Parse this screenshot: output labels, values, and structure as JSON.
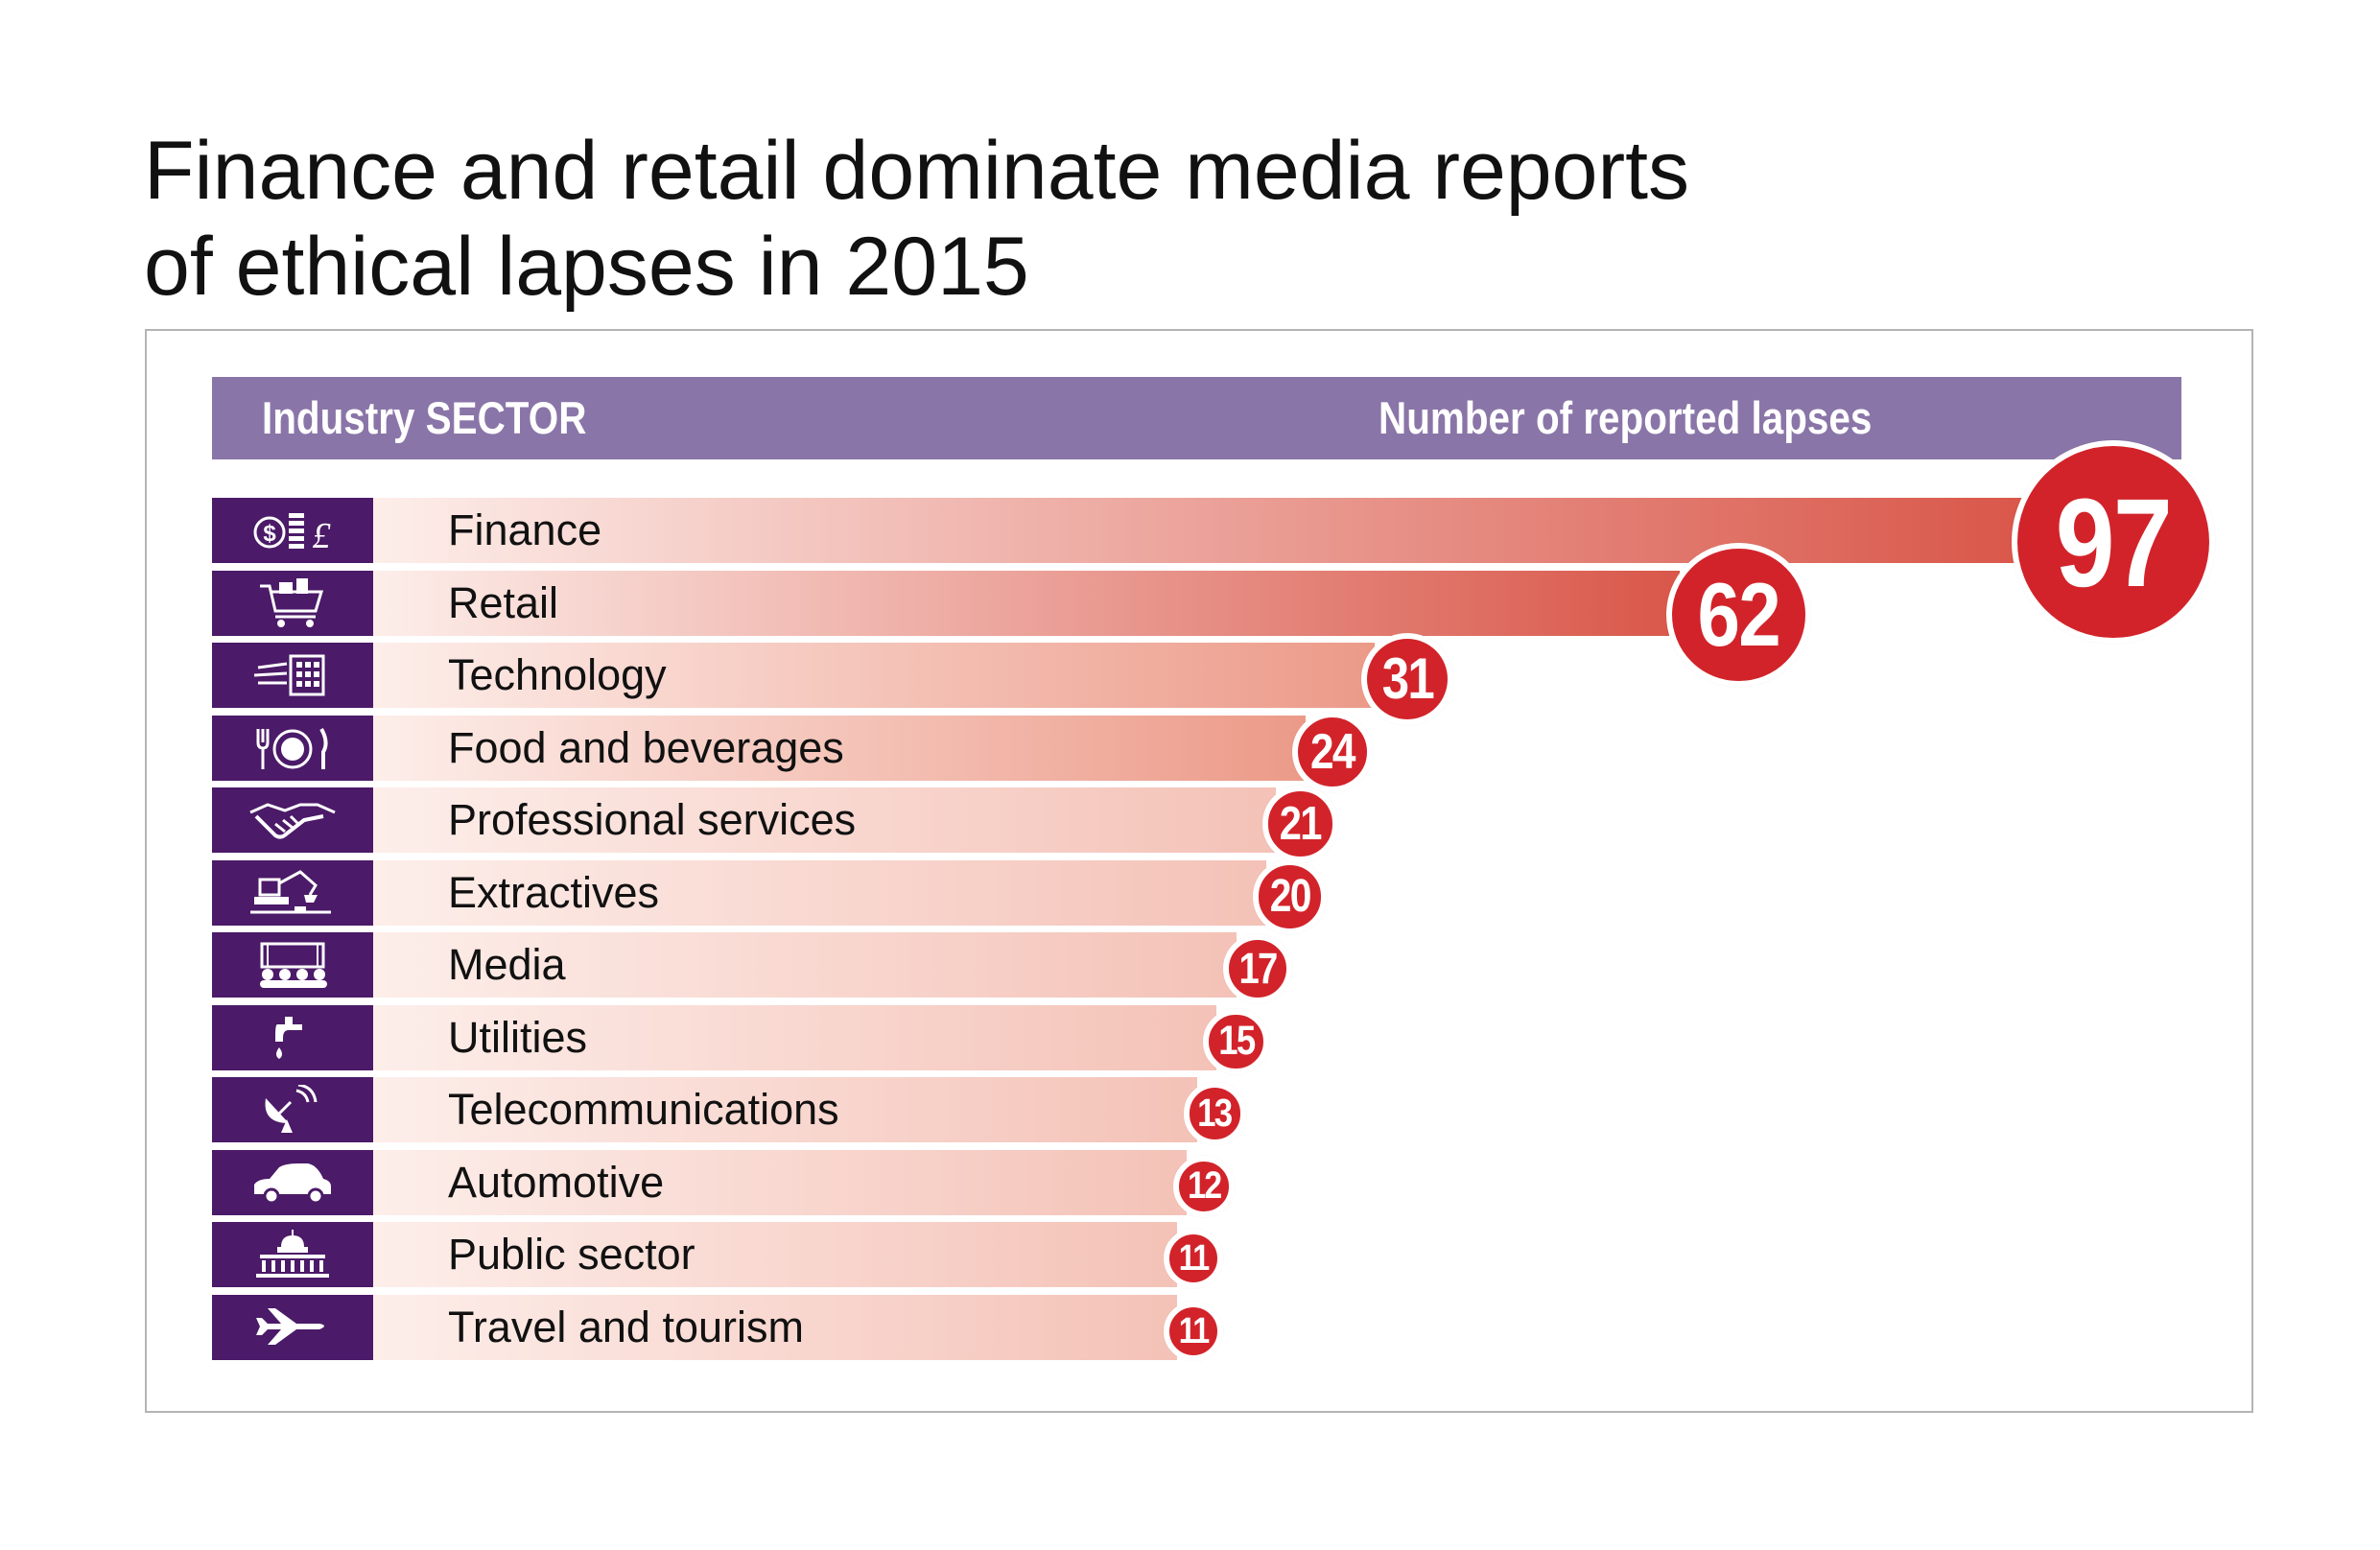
{
  "title_lines": [
    "Finance and retail dominate media reports",
    "of ethical lapses in 2015"
  ],
  "header": {
    "left": "Industry SECTOR",
    "right": "Number of reported lapses"
  },
  "colors": {
    "header": "#8a75a8",
    "icon_bg": "#4b1a68",
    "bubble": "#d2232a",
    "bar_end": "#d9574a",
    "bar_start": "#fdeeea"
  },
  "chart_data": {
    "type": "bar",
    "orientation": "horizontal",
    "title": "Finance and retail dominate media reports of ethical lapses in 2015",
    "xlabel": "Number of reported lapses",
    "ylabel": "Industry SECTOR",
    "categories": [
      "Finance",
      "Retail",
      "Technology",
      "Food and beverages",
      "Professional services",
      "Extractives",
      "Media",
      "Utilities",
      "Telecommunications",
      "Automotive",
      "Public sector",
      "Travel and tourism"
    ],
    "values": [
      97,
      62,
      31,
      24,
      21,
      20,
      17,
      15,
      13,
      12,
      11,
      11
    ],
    "icons": [
      "coins-icon",
      "shopping-cart-icon",
      "keypad-icon",
      "cutlery-icon",
      "handshake-icon",
      "excavator-icon",
      "film-audience-icon",
      "tap-icon",
      "satellite-dish-icon",
      "car-icon",
      "capitol-building-icon",
      "airplane-icon"
    ]
  }
}
